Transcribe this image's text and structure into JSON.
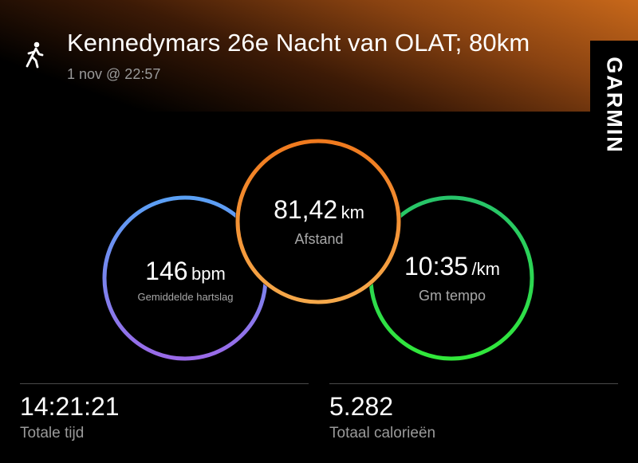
{
  "header": {
    "activity_icon": "walking-person-icon",
    "title": "Kennedymars 26e Nacht van OLAT; 80km",
    "subtitle": "1 nov @ 22:57"
  },
  "brand": {
    "name": "GARMIN"
  },
  "metrics": {
    "heart_rate": {
      "value": "146",
      "unit": "bpm",
      "label": "Gemiddelde hartslag",
      "ring_colors": [
        "#5aa0f5",
        "#9a6ae8"
      ]
    },
    "distance": {
      "value": "81,42",
      "unit": "km",
      "label": "Afstand",
      "ring_colors": [
        "#f07a1e",
        "#f5a84a"
      ]
    },
    "pace": {
      "value": "10:35",
      "unit": "/km",
      "label": "Gm tempo",
      "ring_colors": [
        "#27c46a",
        "#31e83a"
      ]
    }
  },
  "stats": {
    "total_time": {
      "value": "14:21:21",
      "label": "Totale tijd"
    },
    "calories": {
      "value": "5.282",
      "label": "Totaal calorieën"
    }
  }
}
